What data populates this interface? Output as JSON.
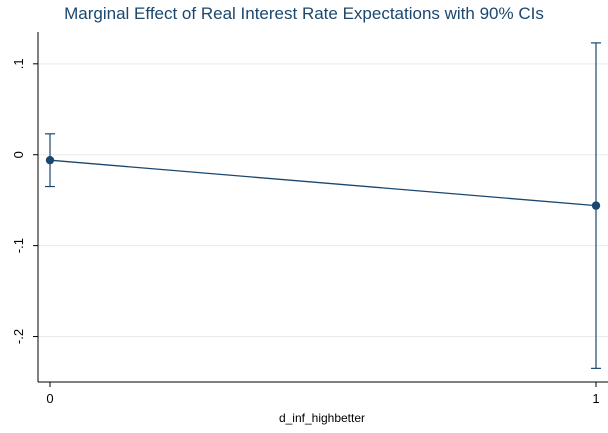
{
  "chart_data": {
    "type": "line",
    "title": "Marginal Effect of Real Interest Rate Expectations with 90% CIs",
    "xlabel": "d_inf_highbetter",
    "ylabel": "",
    "x": [
      0,
      1
    ],
    "x_tick_labels": [
      "0",
      "1"
    ],
    "xlim": [
      0,
      1
    ],
    "ylim": [
      -0.25,
      0.135
    ],
    "y_ticks": [
      0.1,
      0,
      -0.1,
      -0.2
    ],
    "y_tick_labels": [
      ".1",
      "0",
      "-.1",
      "-.2"
    ],
    "series": [
      {
        "estimate": [
          -0.006,
          -0.056
        ],
        "ci_lower": [
          -0.035,
          -0.235
        ],
        "ci_upper": [
          0.023,
          0.123
        ]
      }
    ],
    "grid": true,
    "legend": "none",
    "colors": {
      "series": "#1a476f",
      "grid": "#eaeaea",
      "axis": "#000000",
      "title": "#1a476f"
    }
  }
}
